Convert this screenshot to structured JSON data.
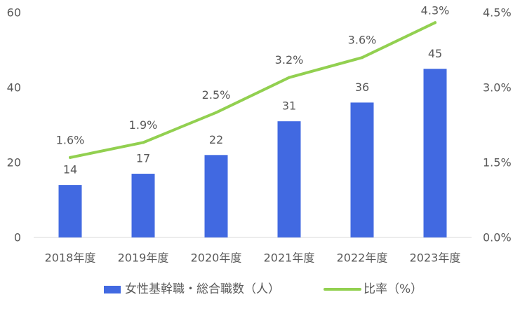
{
  "chart_data": {
    "type": "bar",
    "categories": [
      "2018年度",
      "2019年度",
      "2020年度",
      "2021年度",
      "2022年度",
      "2023年度"
    ],
    "series": [
      {
        "name": "女性基幹職・総合職数（人）",
        "type": "bar",
        "y_axis": "left",
        "values": [
          14,
          17,
          22,
          31,
          36,
          45
        ],
        "labels": [
          "14",
          "17",
          "22",
          "31",
          "36",
          "45"
        ],
        "color": "#4169E1"
      },
      {
        "name": "比率（%）",
        "type": "line",
        "y_axis": "right",
        "values": [
          1.6,
          1.9,
          2.5,
          3.2,
          3.6,
          4.3
        ],
        "labels": [
          "1.6%",
          "1.9%",
          "2.5%",
          "3.2%",
          "3.6%",
          "4.3%"
        ],
        "color": "#92D050"
      }
    ],
    "y_left": {
      "range": [
        0,
        60
      ],
      "tick_values": [
        0,
        20,
        40,
        60
      ],
      "ticks": [
        "0",
        "20",
        "40",
        "60"
      ]
    },
    "y_right": {
      "range": [
        0,
        4.5
      ],
      "tick_values": [
        0,
        1.5,
        3.0,
        4.5
      ],
      "ticks": [
        "0.0%",
        "1.5%",
        "3.0%",
        "4.5%"
      ]
    },
    "grid": false,
    "legend": "bottom",
    "axis_color": "#D9D9D9",
    "text_color": "#595959"
  }
}
